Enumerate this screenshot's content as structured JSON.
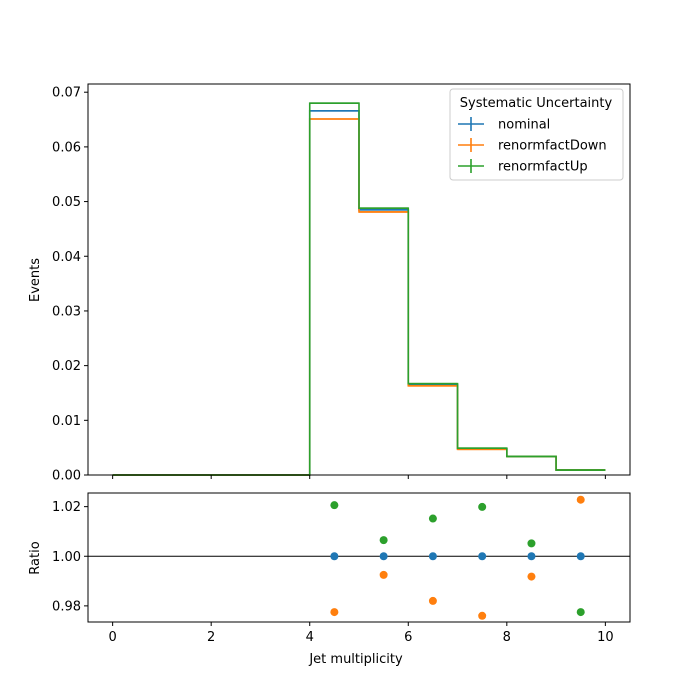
{
  "chart_data": [
    {
      "type": "line",
      "drawstyle": "steps",
      "xlabel": "",
      "ylabel": "Events",
      "xlim": [
        -0.5,
        10.5
      ],
      "ylim": [
        0,
        0.0715
      ],
      "bin_edges": [
        0,
        1,
        2,
        3,
        4,
        5,
        6,
        7,
        8,
        9,
        10
      ],
      "xticks": [
        0,
        2,
        4,
        6,
        8,
        10
      ],
      "xtick_labels": [
        "",
        "",
        "",
        "",
        "",
        ""
      ],
      "yticks": [
        0.0,
        0.01,
        0.02,
        0.03,
        0.04,
        0.05,
        0.06,
        0.07
      ],
      "ytick_labels": [
        "0.00",
        "0.01",
        "0.02",
        "0.03",
        "0.04",
        "0.05",
        "0.06",
        "0.07"
      ],
      "legend": {
        "title": "Systematic Uncertainty",
        "position": "upper right"
      },
      "series": [
        {
          "name": "nominal",
          "color": "#1f77b4",
          "values": [
            0,
            0,
            0,
            0,
            0.0666,
            0.0485,
            0.0165,
            0.0048,
            0.0034,
            0.0009
          ]
        },
        {
          "name": "renormfactDown",
          "color": "#ff7f0e",
          "values": [
            0,
            0,
            0,
            0,
            0.0651,
            0.0481,
            0.0163,
            0.0047,
            0.0034,
            0.0009
          ]
        },
        {
          "name": "renormfactUp",
          "color": "#2ca02c",
          "values": [
            0,
            0,
            0,
            0,
            0.068,
            0.0488,
            0.0167,
            0.0049,
            0.0034,
            0.0009
          ]
        }
      ]
    },
    {
      "type": "scatter",
      "xlabel": "Jet multiplicity",
      "ylabel": "Ratio",
      "xlim": [
        -0.5,
        10.5
      ],
      "ylim": [
        0.9735,
        1.0255
      ],
      "xticks": [
        0,
        2,
        4,
        6,
        8,
        10
      ],
      "xtick_labels": [
        "0",
        "2",
        "4",
        "6",
        "8",
        "10"
      ],
      "yticks": [
        0.98,
        1.0,
        1.02
      ],
      "ytick_labels": [
        "0.98",
        "1.00",
        "1.02"
      ],
      "reference_line": 1.0,
      "x": [
        4.5,
        5.5,
        6.5,
        7.5,
        8.5,
        9.5
      ],
      "series": [
        {
          "name": "nominal",
          "color": "#1f77b4",
          "values": [
            1.0,
            1.0,
            1.0,
            1.0,
            1.0,
            1.0
          ]
        },
        {
          "name": "renormfactDown",
          "color": "#ff7f0e",
          "values": [
            0.9775,
            0.9925,
            0.982,
            0.976,
            0.9918,
            1.0228
          ]
        },
        {
          "name": "renormfactUp",
          "color": "#2ca02c",
          "values": [
            1.0206,
            1.0065,
            1.0152,
            1.0199,
            1.0052,
            0.9775
          ]
        }
      ]
    }
  ]
}
